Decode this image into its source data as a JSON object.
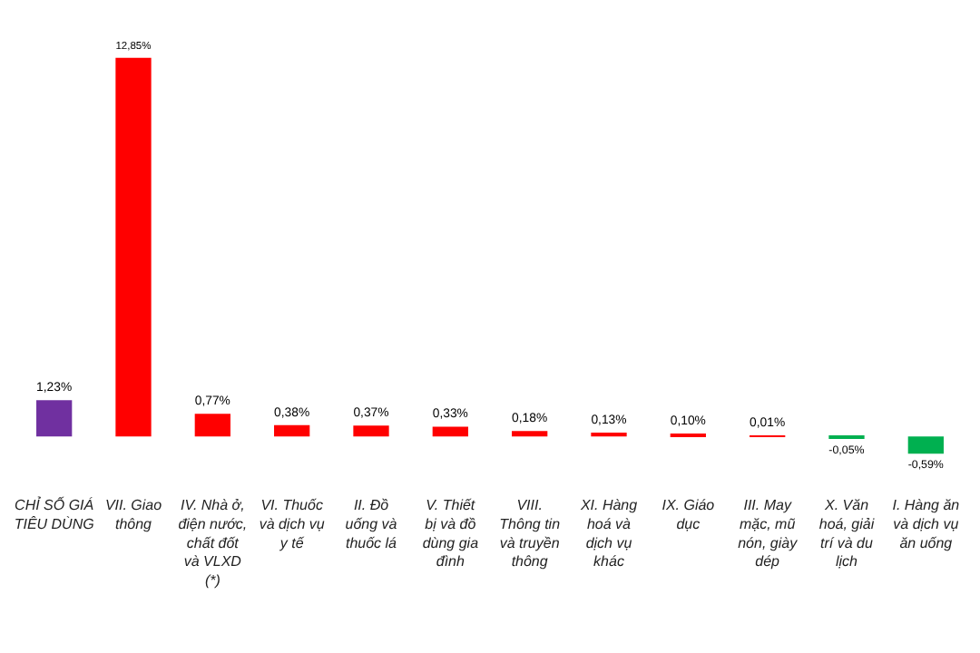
{
  "chart_data": {
    "type": "bar",
    "categories": [
      "CHỈ SỐ GIÁ TIÊU DÙNG",
      "VII. Giao thông",
      "IV. Nhà ở, điện nước, chất đốt và VLXD (*)",
      "VI. Thuốc và dịch vụ y tế",
      "II. Đồ uống và thuốc lá",
      "V. Thiết bị và đồ dùng gia đình",
      "VIII. Thông tin và truyền thông",
      "XI. Hàng hoá và dịch vụ khác",
      "IX. Giáo dục",
      "III. May mặc, mũ nón, giày dép",
      "X. Văn hoá, giải trí và du lịch",
      "I. Hàng ăn và dịch vụ ăn uống"
    ],
    "values": [
      1.23,
      12.85,
      0.77,
      0.38,
      0.37,
      0.33,
      0.18,
      0.13,
      0.1,
      0.01,
      -0.05,
      -0.59
    ],
    "value_labels": [
      "1,23%",
      "12,85%",
      "0,77%",
      "0,38%",
      "0,37%",
      "0,33%",
      "0,18%",
      "0,13%",
      "0,10%",
      "0,01%",
      "-0,05%",
      "-0,59%"
    ],
    "colors": [
      "#7030a0",
      "#ff0000",
      "#ff0000",
      "#ff0000",
      "#ff0000",
      "#ff0000",
      "#ff0000",
      "#ff0000",
      "#ff0000",
      "#ff0000",
      "#00b050",
      "#00b050"
    ],
    "legend": false
  }
}
